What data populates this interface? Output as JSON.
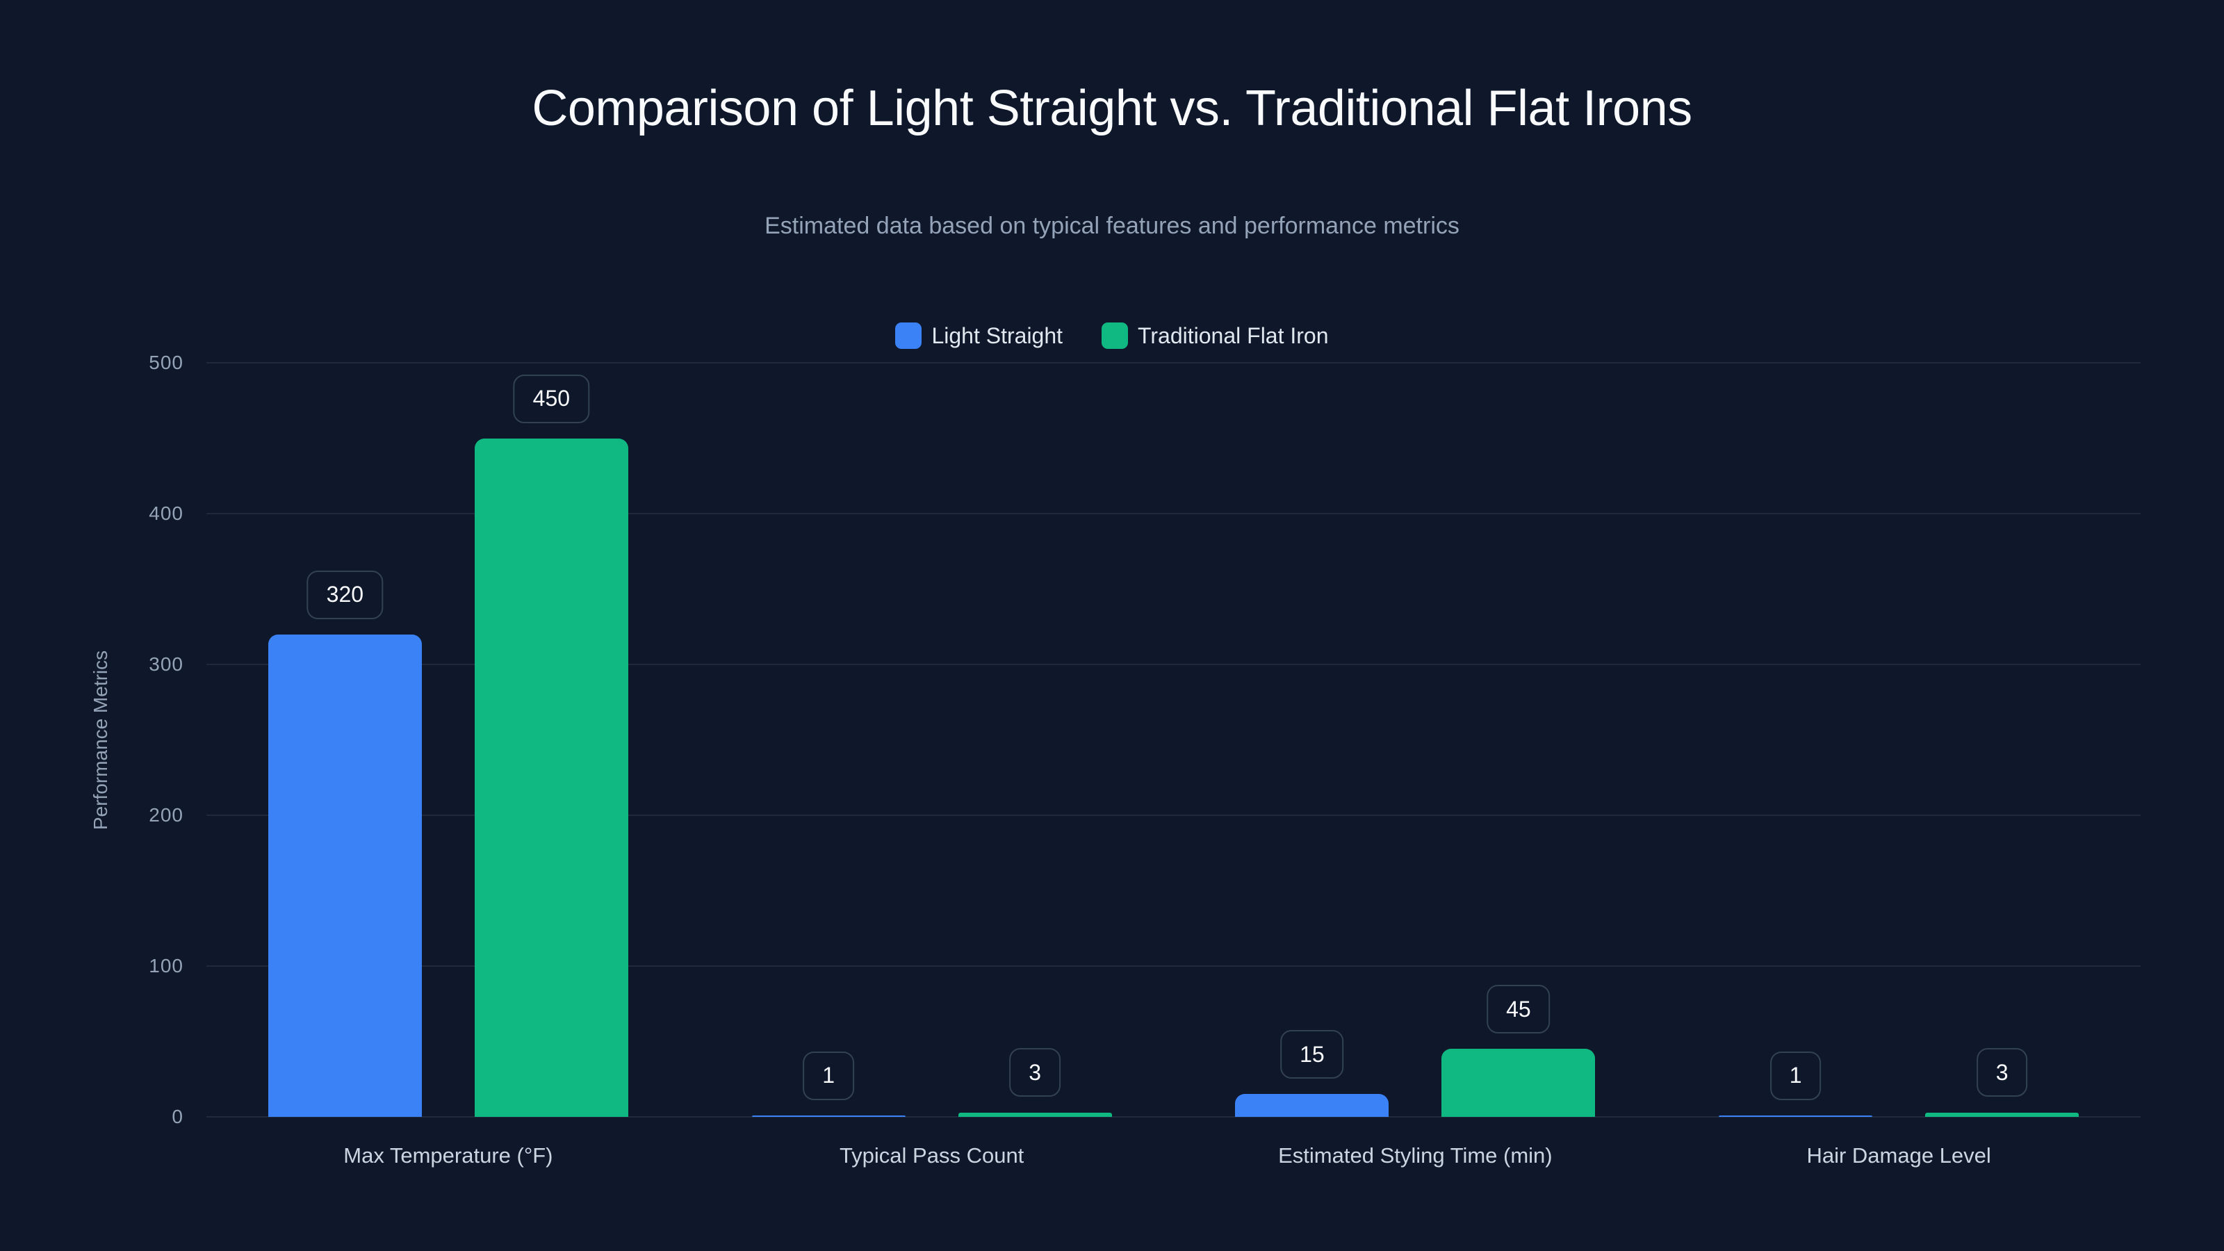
{
  "title": "Comparison of Light Straight vs. Traditional Flat Irons",
  "subtitle": "Estimated data based on typical features and performance metrics",
  "legend": [
    {
      "label": "Light Straight",
      "color": "#3b82f6"
    },
    {
      "label": "Traditional Flat Iron",
      "color": "#10b981"
    }
  ],
  "y_axis": {
    "title": "Performance Metrics",
    "ticks": [
      "0",
      "100",
      "200",
      "300",
      "400",
      "500"
    ]
  },
  "colors": {
    "background": "#0f172a",
    "grid": "#1e293b",
    "label_border": "#334155"
  },
  "chart_data": {
    "type": "bar",
    "title": "Comparison of Light Straight vs. Traditional Flat Irons",
    "subtitle": "Estimated data based on typical features and performance metrics",
    "categories": [
      "Max Temperature (°F)",
      "Typical Pass Count",
      "Estimated Styling Time (min)",
      "Hair Damage Level"
    ],
    "series": [
      {
        "name": "Light Straight",
        "color": "#3b82f6",
        "values": [
          320,
          1,
          15,
          1
        ]
      },
      {
        "name": "Traditional Flat Iron",
        "color": "#10b981",
        "values": [
          450,
          3,
          45,
          3
        ]
      }
    ],
    "xlabel": "",
    "ylabel": "Performance Metrics",
    "ylim": [
      0,
      500
    ],
    "yticks": [
      0,
      100,
      200,
      300,
      400,
      500
    ],
    "grid": true,
    "legend_position": "top-center",
    "data_labels": true
  }
}
